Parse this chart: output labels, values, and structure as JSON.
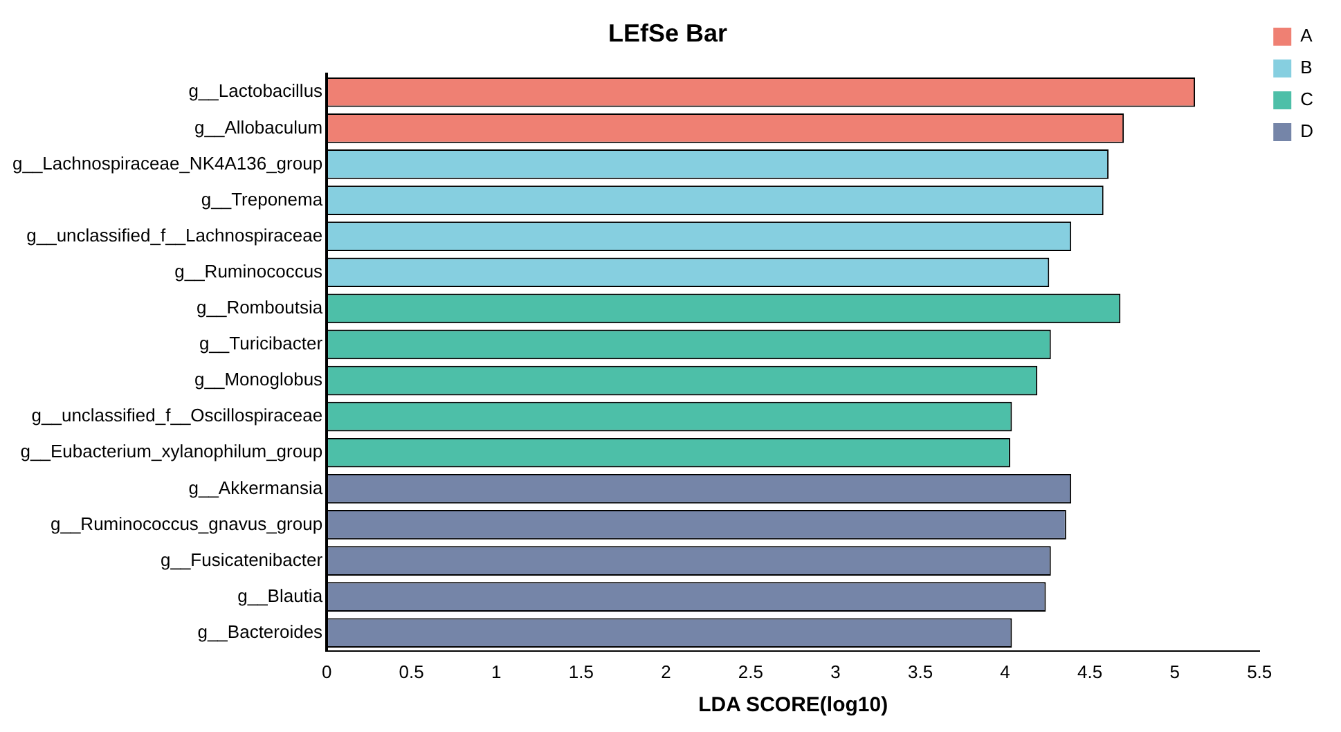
{
  "chart_data": {
    "type": "bar",
    "title": "LEfSe Bar",
    "xlabel": "LDA SCORE(log10)",
    "orientation": "horizontal",
    "categories": [
      "g__Lactobacillus",
      "g__Allobaculum",
      "g__Lachnospiraceae_NK4A136_group",
      "g__Treponema",
      "g__unclassified_f__Lachnospiraceae",
      "g__Ruminococcus",
      "g__Romboutsia",
      "g__Turicibacter",
      "g__Monoglobus",
      "g__unclassified_f__Oscillospiraceae",
      "g__Eubacterium_xylanophilum_group",
      "g__Akkermansia",
      "g__Ruminococcus_gnavus_group",
      "g__Fusicatenibacter",
      "g__Blautia",
      "g__Bacteroides"
    ],
    "series": [
      {
        "name": "A",
        "color": "#ef8073",
        "values": [
          5.12,
          4.7,
          null,
          null,
          null,
          null,
          null,
          null,
          null,
          null,
          null,
          null,
          null,
          null,
          null,
          null
        ]
      },
      {
        "name": "B",
        "color": "#86cfe0",
        "values": [
          null,
          null,
          4.61,
          4.58,
          4.39,
          4.26,
          null,
          null,
          null,
          null,
          null,
          null,
          null,
          null,
          null,
          null
        ]
      },
      {
        "name": "C",
        "color": "#4dbfa8",
        "values": [
          null,
          null,
          null,
          null,
          null,
          null,
          4.68,
          4.27,
          4.19,
          4.04,
          4.03,
          null,
          null,
          null,
          null,
          null
        ]
      },
      {
        "name": "D",
        "color": "#7585a8",
        "values": [
          null,
          null,
          null,
          null,
          null,
          null,
          null,
          null,
          null,
          null,
          null,
          4.39,
          4.36,
          4.27,
          4.24,
          4.04
        ]
      }
    ],
    "xlim": [
      0,
      5.5
    ],
    "xticks": [
      0,
      0.5,
      1,
      1.5,
      2,
      2.5,
      3,
      3.5,
      4,
      4.5,
      5,
      5.5
    ],
    "grid": false,
    "legend": "top right"
  }
}
